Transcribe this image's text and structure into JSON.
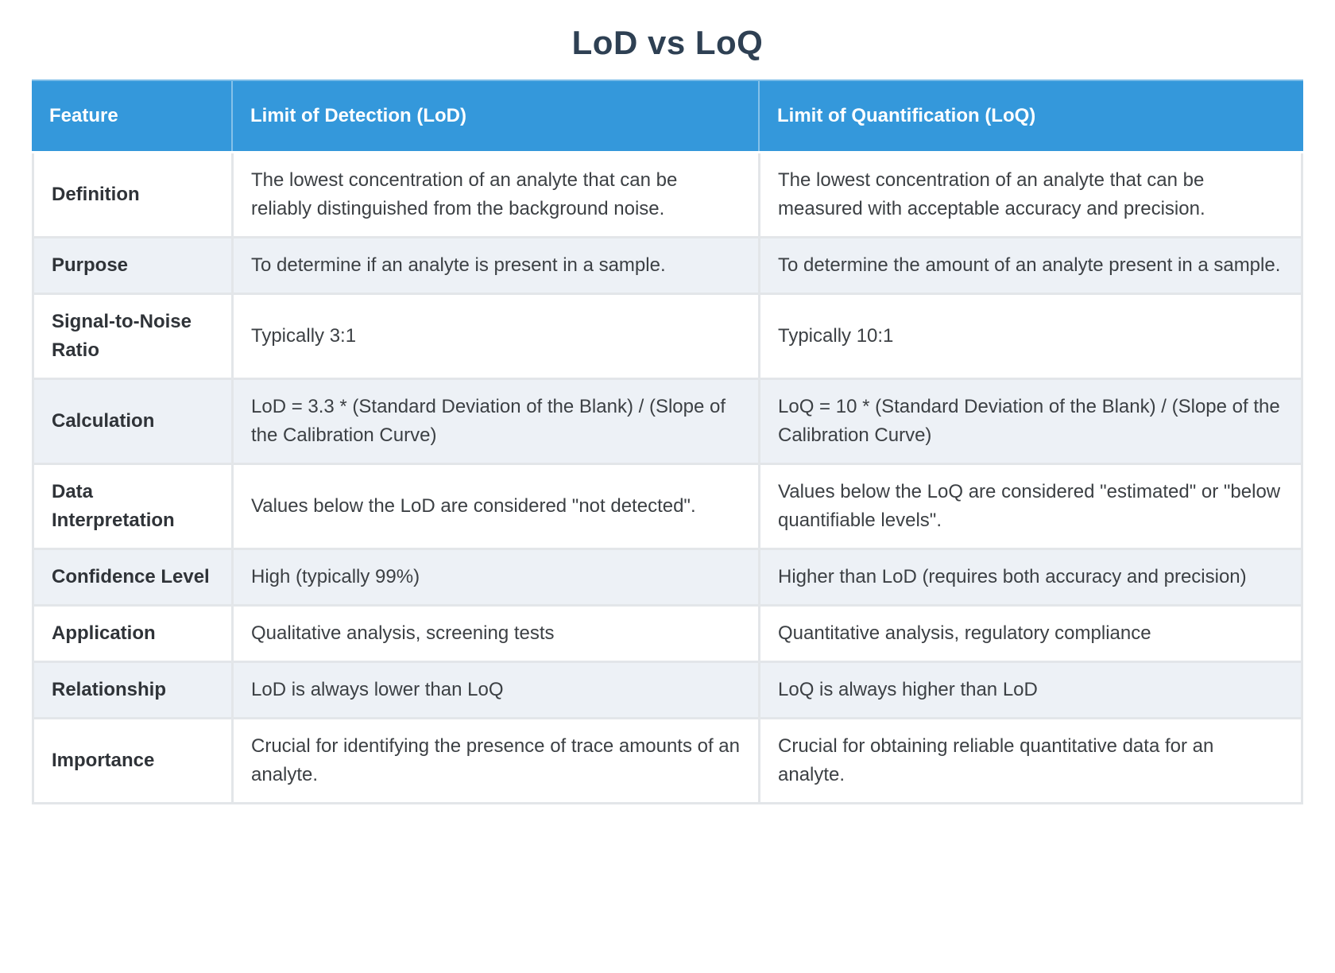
{
  "page": {
    "title": "LoD vs LoQ"
  },
  "colors": {
    "header_bg": "#3498db",
    "header_text": "#ffffff",
    "row_bg": "#ffffff",
    "row_alt_bg": "#edf1f6",
    "grid_line": "#e3e6e9",
    "title_text": "#2e4053",
    "label_text": "#2f3338",
    "body_text": "#3c4044"
  },
  "table": {
    "columns": [
      "Feature",
      "Limit of Detection (LoD)",
      "Limit of Quantification (LoQ)"
    ],
    "rows": [
      {
        "feature": "Definition",
        "lod": "The lowest concentration of an analyte that can be reliably distinguished from the background noise.",
        "loq": "The lowest concentration of an analyte that can be measured with acceptable accuracy and precision."
      },
      {
        "feature": "Purpose",
        "lod": "To determine if an analyte is present in a sample.",
        "loq": "To determine the amount of an analyte present in a sample."
      },
      {
        "feature": "Signal-to-Noise Ratio",
        "lod": "Typically 3:1",
        "loq": "Typically 10:1"
      },
      {
        "feature": "Calculation",
        "lod": "LoD = 3.3 * (Standard Deviation of the Blank) / (Slope of the Calibration Curve)",
        "loq": "LoQ = 10 * (Standard Deviation of the Blank) / (Slope of the Calibration Curve)"
      },
      {
        "feature": "Data Interpretation",
        "lod": "Values below the LoD are considered \"not detected\".",
        "loq": "Values below the LoQ are considered \"estimated\" or \"below quantifiable levels\"."
      },
      {
        "feature": "Confidence Level",
        "lod": "High (typically 99%)",
        "loq": "Higher than LoD (requires both accuracy and precision)"
      },
      {
        "feature": "Application",
        "lod": "Qualitative analysis, screening tests",
        "loq": "Quantitative analysis, regulatory compliance"
      },
      {
        "feature": "Relationship",
        "lod": "LoD is always lower than LoQ",
        "loq": "LoQ is always higher than LoD"
      },
      {
        "feature": "Importance",
        "lod": "Crucial for identifying the presence of trace amounts of an analyte.",
        "loq": "Crucial for obtaining reliable quantitative data for an analyte."
      }
    ]
  }
}
